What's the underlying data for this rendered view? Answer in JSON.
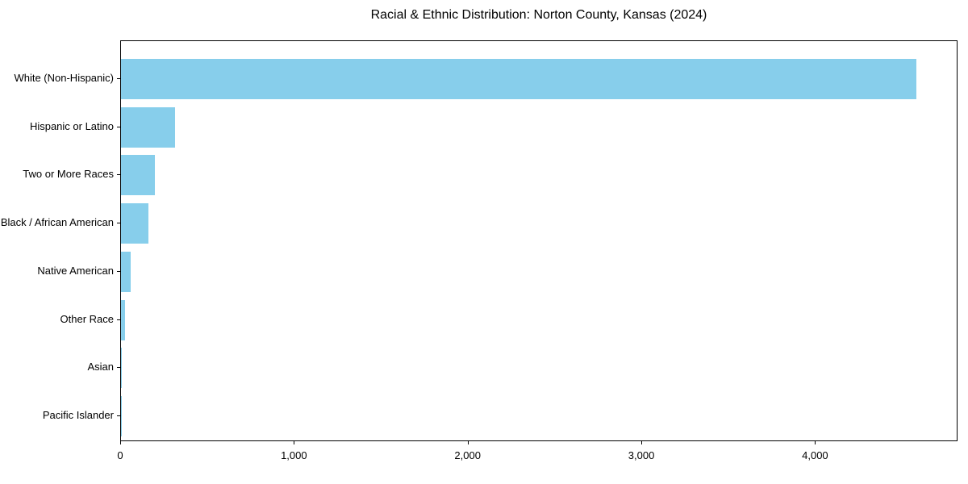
{
  "title": "Racial & Ethnic Distribution: Norton County, Kansas (2024)",
  "chart_data": {
    "type": "bar",
    "orientation": "horizontal",
    "title": "Racial & Ethnic Distribution: Norton County, Kansas (2024)",
    "xlabel": "",
    "ylabel": "",
    "categories": [
      "White (Non-Hispanic)",
      "Hispanic or Latino",
      "Two or More Races",
      "Black / African American",
      "Native American",
      "Other Race",
      "Asian",
      "Pacific Islander"
    ],
    "values": [
      4580,
      310,
      195,
      160,
      55,
      25,
      5,
      2
    ],
    "bar_color": "#87CEEB",
    "text_color": "#000000",
    "xlim": [
      0,
      4820
    ],
    "x_ticks": [
      0,
      1000,
      2000,
      3000,
      4000
    ],
    "x_tick_labels": [
      "0",
      "1,000",
      "2,000",
      "3,000",
      "4,000"
    ],
    "grid": false,
    "legend": false
  }
}
